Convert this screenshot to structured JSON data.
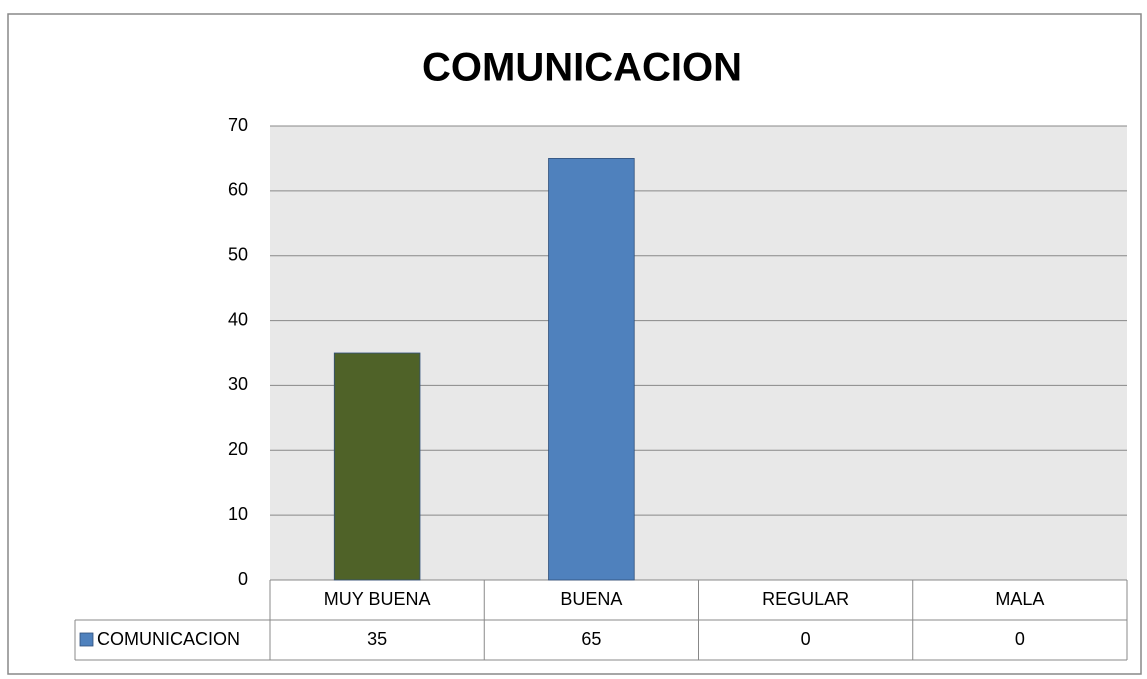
{
  "chart_data": {
    "type": "bar",
    "title": "COMUNICACION",
    "categories": [
      "MUY BUENA",
      "BUENA",
      "REGULAR",
      "MALA"
    ],
    "series": [
      {
        "name": "COMUNICACION",
        "color": "#4f81bd",
        "colors": [
          "#4f6228",
          "#4f81bd",
          "#4f81bd",
          "#4f81bd"
        ],
        "values": [
          35,
          65,
          0,
          0
        ]
      }
    ],
    "ylim": [
      0,
      70
    ],
    "yticks": [
      0,
      10,
      20,
      30,
      40,
      50,
      60,
      70
    ],
    "grid": true,
    "data_table": true
  }
}
